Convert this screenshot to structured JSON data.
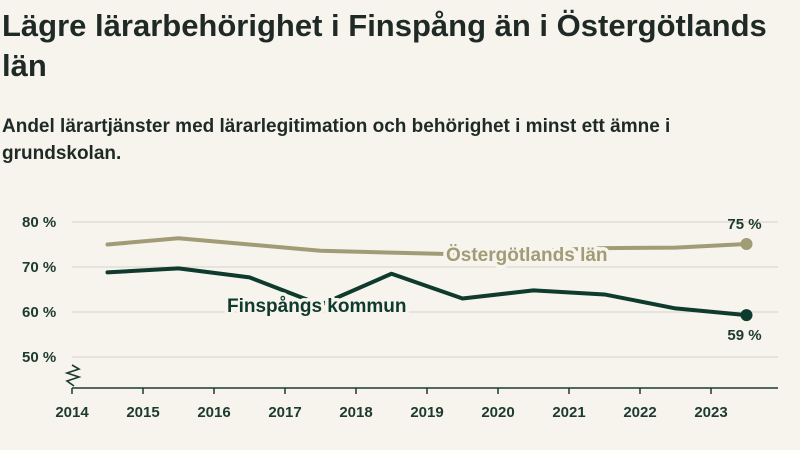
{
  "title": "Lägre lärarbehörighet i Finspång än i Östergötlands län",
  "subtitle": "Andel lärartjänster med lärarlegitimation och behörighet i minst ett ämne i grundskolan.",
  "colors": {
    "background": "#f6f4ec",
    "ostergotland": "#a19c76",
    "finspang": "#0f3a2e",
    "grid": "#dcd9cf",
    "axis": "#1d3a30"
  },
  "chart_data": {
    "type": "line",
    "title": "Lägre lärarbehörighet i Finspång än i Östergötlands län",
    "subtitle": "Andel lärartjänster med lärarlegitimation och behörighet i minst ett ämne i grundskolan.",
    "xlabel": "",
    "ylabel": "",
    "xlim": [
      2014,
      2024
    ],
    "ylim": [
      45,
      81
    ],
    "y_ticks": [
      50,
      60,
      70,
      80
    ],
    "y_tick_labels": [
      "50 %",
      "60 %",
      "70 %",
      "80 %"
    ],
    "x_ticks": [
      2014,
      2015,
      2016,
      2017,
      2018,
      2019,
      2020,
      2021,
      2022,
      2023
    ],
    "x_tick_labels": [
      "2014",
      "2015",
      "2016",
      "2017",
      "2018",
      "2019",
      "2020",
      "2021",
      "2022",
      "2023"
    ],
    "grid": true,
    "axis_break": true,
    "x": [
      2014.5,
      2015.5,
      2016.5,
      2017.5,
      2018.5,
      2019.5,
      2020.5,
      2021.5,
      2022.5,
      2023.5
    ],
    "series": [
      {
        "name": "Östergötlands län",
        "values": [
          75.0,
          76.4,
          75.0,
          73.6,
          73.2,
          72.8,
          73.6,
          74.2,
          74.3,
          75.1
        ],
        "end_label": "75 %"
      },
      {
        "name": "Finspångs kommun",
        "values": [
          68.8,
          69.7,
          67.7,
          61.6,
          68.5,
          63.0,
          64.8,
          63.9,
          60.8,
          59.3
        ],
        "end_label": "59 %"
      }
    ]
  }
}
